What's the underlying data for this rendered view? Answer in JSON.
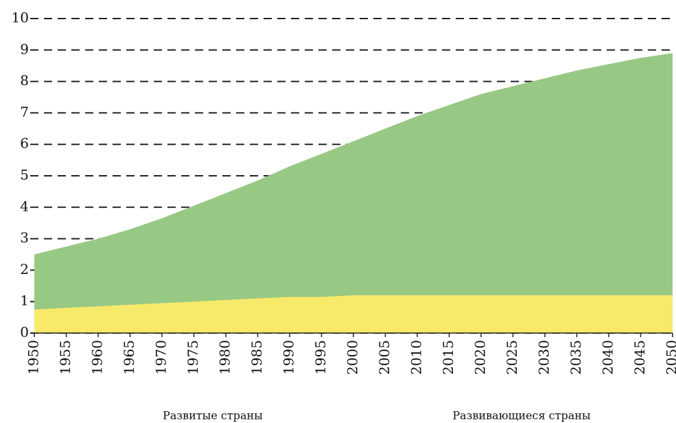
{
  "chart_data": {
    "type": "area",
    "stacked": true,
    "x": [
      1950,
      1955,
      1960,
      1965,
      1970,
      1975,
      1980,
      1985,
      1990,
      1995,
      2000,
      2005,
      2010,
      2015,
      2020,
      2025,
      2030,
      2035,
      2040,
      2045,
      2050
    ],
    "xlim": [
      1950,
      2050
    ],
    "xticks": [
      1950,
      1955,
      1960,
      1965,
      1970,
      1975,
      1980,
      1985,
      1990,
      1995,
      2000,
      2005,
      2010,
      2015,
      2020,
      2025,
      2030,
      2035,
      2040,
      2045,
      2050
    ],
    "ylim": [
      0,
      10
    ],
    "yticks": [
      0,
      1,
      2,
      3,
      4,
      5,
      6,
      7,
      8,
      9,
      10
    ],
    "grid": true,
    "series": [
      {
        "name": "Развитые страны",
        "color": "#f7e96a",
        "values": [
          0.75,
          0.8,
          0.85,
          0.9,
          0.95,
          1.0,
          1.05,
          1.1,
          1.15,
          1.15,
          1.2,
          1.2,
          1.2,
          1.2,
          1.2,
          1.2,
          1.2,
          1.2,
          1.2,
          1.2,
          1.2
        ]
      },
      {
        "name": "Развивающиеся страны",
        "color": "#98c984",
        "values": [
          1.75,
          1.95,
          2.15,
          2.4,
          2.7,
          3.05,
          3.4,
          3.75,
          4.15,
          4.55,
          4.9,
          5.3,
          5.7,
          6.05,
          6.4,
          6.65,
          6.9,
          7.15,
          7.35,
          7.55,
          7.7
        ]
      }
    ]
  }
}
